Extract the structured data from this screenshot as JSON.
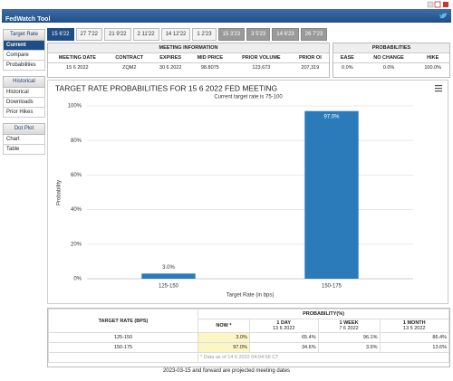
{
  "header": {
    "title": "FedWatch Tool"
  },
  "tabs": [
    "15 6'22",
    "27 7'22",
    "21 9'22",
    "2 11'22",
    "14 12'22",
    "1 2'23",
    "15 3'23",
    "3 5'23",
    "14 6'23",
    "26 7'23"
  ],
  "sidebar": [
    {
      "title": "Target Rate",
      "items": [
        "Current",
        "Compare",
        "Probabilities"
      ]
    },
    {
      "title": "Historical",
      "items": [
        "Historical",
        "Downloads",
        "Prior Hikes"
      ]
    },
    {
      "title": "Dot Plot",
      "items": [
        "Chart",
        "Table"
      ]
    }
  ],
  "meeting_info": {
    "title": "MEETING INFORMATION",
    "columns": [
      "MEETING DATE",
      "CONTRACT",
      "EXPIRES",
      "MID PRICE",
      "PRIOR VOLUME",
      "PRIOR OI"
    ],
    "rows": [
      [
        "15 6 2022",
        "ZQM2",
        "30 6 2022",
        "98.8075",
        "123,673",
        "207,319"
      ]
    ]
  },
  "probabilities": {
    "title": "PROBABILITIES",
    "columns": [
      "EASE",
      "NO CHANGE",
      "HIKE"
    ],
    "rows": [
      [
        "0.0%",
        "0.0%",
        "100.0%"
      ]
    ]
  },
  "chart_data": {
    "type": "bar",
    "title": "TARGET RATE PROBABILITIES FOR 15 6 2022 FED MEETING",
    "subtitle": "Current target rate is 75-100",
    "x_label": "Target Rate (in bps)",
    "y_label": "Probability",
    "categories": [
      "125-150",
      "150-175"
    ],
    "values": [
      3.0,
      97.0
    ],
    "value_labels": [
      "3.0%",
      "97.0%"
    ],
    "color": "#2b7bba",
    "ylim": [
      0,
      100
    ],
    "yticks": [
      {
        "value": 0,
        "label": "0%"
      },
      {
        "value": 20,
        "label": "20%"
      },
      {
        "value": 40,
        "label": "40%"
      },
      {
        "value": 60,
        "label": "60%"
      },
      {
        "value": 80,
        "label": "80%"
      },
      {
        "value": 100,
        "label": "100%"
      }
    ],
    "grid": true
  },
  "probability_table": {
    "row_header": "TARGET RATE (BPS)",
    "group_header": "PROBABILITY(%)",
    "columns": [
      {
        "label": "NOW *"
      },
      {
        "label": "1 DAY",
        "date": "13 6 2022"
      },
      {
        "label": "1 WEEK",
        "date": "7 6 2022"
      },
      {
        "label": "1 MONTH",
        "date": "13 5 2022"
      }
    ],
    "rows": [
      [
        "125-150",
        "3.0%",
        "65.4%",
        "96.1%",
        "86.4%"
      ],
      [
        "150-175",
        "97.0%",
        "34.6%",
        "3.9%",
        "13.6%"
      ]
    ],
    "note": "* Data as of 14 6 2022 04:04:58 CT"
  },
  "footer": "2023-03-15 and forward are projected meeting dates"
}
